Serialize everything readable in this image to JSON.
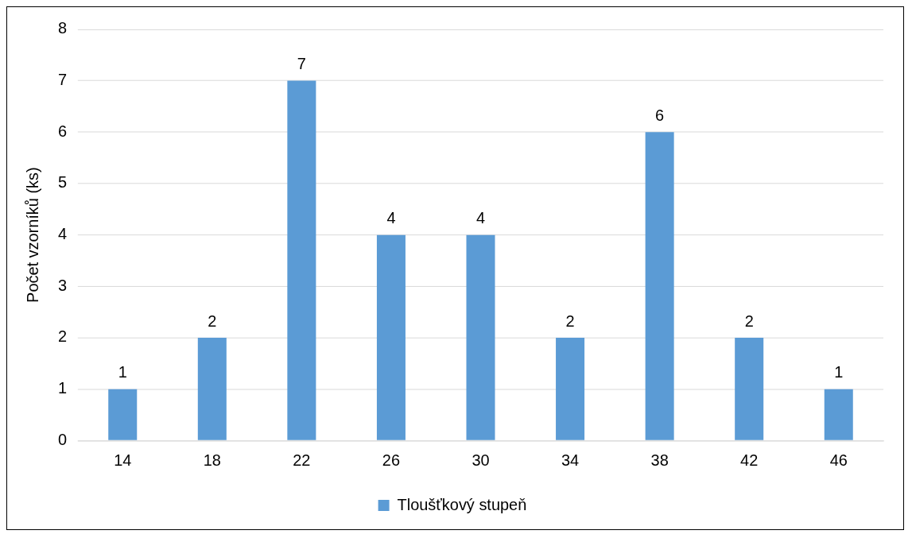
{
  "chart_data": {
    "type": "bar",
    "ylabel": "Počet vzorníků (ks)",
    "categories": [
      "14",
      "18",
      "22",
      "26",
      "30",
      "34",
      "38",
      "42",
      "46"
    ],
    "series": [
      {
        "name": "Tloušťkový stupeň",
        "color": "#5b9bd5",
        "values": [
          1,
          2,
          7,
          4,
          4,
          2,
          6,
          2,
          1
        ]
      }
    ],
    "ylim": [
      0,
      8
    ],
    "yticks": [
      0,
      1,
      2,
      3,
      4,
      5,
      6,
      7,
      8
    ],
    "grid": "y",
    "legend": "bottom",
    "data_labels": true
  }
}
